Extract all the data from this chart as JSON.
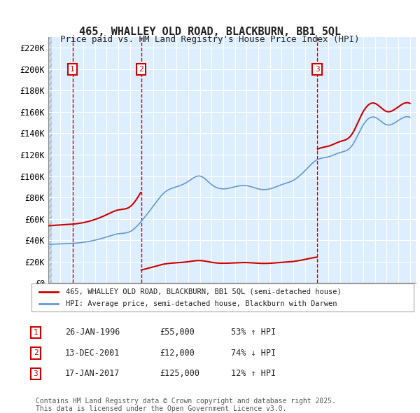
{
  "title1": "465, WHALLEY OLD ROAD, BLACKBURN, BB1 5QL",
  "title2": "Price paid vs. HM Land Registry's House Price Index (HPI)",
  "ylabel_ticks": [
    "£0",
    "£20K",
    "£40K",
    "£60K",
    "£80K",
    "£100K",
    "£120K",
    "£140K",
    "£160K",
    "£180K",
    "£200K",
    "£220K"
  ],
  "ytick_values": [
    0,
    20000,
    40000,
    60000,
    80000,
    100000,
    120000,
    140000,
    160000,
    180000,
    200000,
    220000
  ],
  "ylim": [
    0,
    230000
  ],
  "xlim_start": 1994.0,
  "xlim_end": 2025.5,
  "bg_color": "#ddeeff",
  "hatch_color": "#c0d0e8",
  "grid_color": "#ffffff",
  "sale1_date": 1996.07,
  "sale1_price": 55000,
  "sale2_date": 2001.95,
  "sale2_price": 12000,
  "sale3_date": 2017.05,
  "sale3_price": 125000,
  "legend_label_red": "465, WHALLEY OLD ROAD, BLACKBURN, BB1 5QL (semi-detached house)",
  "legend_label_blue": "HPI: Average price, semi-detached house, Blackburn with Darwen",
  "table_row1": [
    "1",
    "26-JAN-1996",
    "£55,000",
    "53% ↑ HPI"
  ],
  "table_row2": [
    "2",
    "13-DEC-2001",
    "£12,000",
    "74% ↓ HPI"
  ],
  "table_row3": [
    "3",
    "17-JAN-2017",
    "£125,000",
    "12% ↑ HPI"
  ],
  "footer": "Contains HM Land Registry data © Crown copyright and database right 2025.\nThis data is licensed under the Open Government Licence v3.0.",
  "red_color": "#cc0000",
  "blue_color": "#6699cc"
}
